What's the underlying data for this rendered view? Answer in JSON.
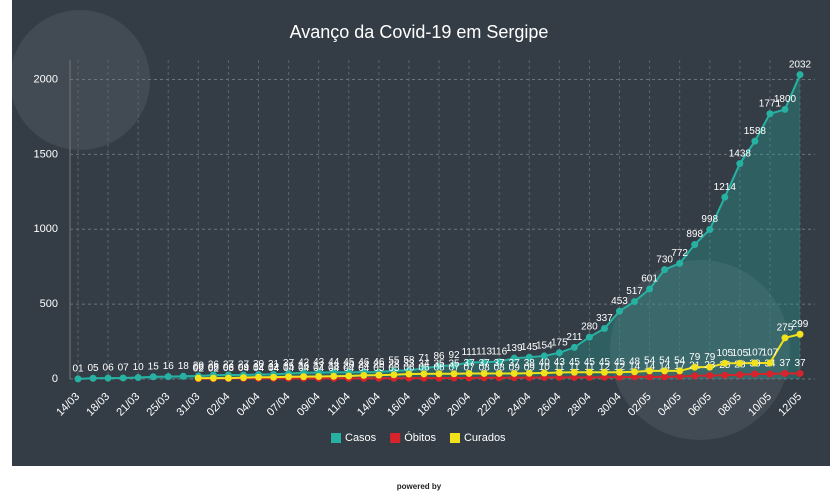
{
  "chart_data": {
    "type": "line",
    "title": "Avanço da Covid-19 em Sergipe",
    "footer": "powered by",
    "categories": [
      "14/03",
      null,
      "18/03",
      null,
      "21/03",
      null,
      "25/03",
      null,
      "31/03",
      null,
      "02/04",
      null,
      "04/04",
      null,
      "07/04",
      null,
      "09/04",
      null,
      "11/04",
      null,
      "14/04",
      null,
      "16/04",
      null,
      "18/04",
      null,
      "20/04",
      null,
      "22/04",
      null,
      "24/04",
      null,
      "26/04",
      null,
      "28/04",
      null,
      "30/04",
      null,
      "02/05",
      null,
      "04/05",
      null,
      "06/05",
      null,
      "08/05",
      null,
      "10/05",
      null,
      "12/05"
    ],
    "series": [
      {
        "name": "Casos",
        "color": "#27b1a2",
        "area": true,
        "values": [
          1,
          5,
          6,
          7,
          10,
          15,
          16,
          18,
          20,
          26,
          27,
          27,
          30,
          31,
          37,
          42,
          43,
          44,
          45,
          46,
          46,
          55,
          58,
          71,
          86,
          92,
          111,
          113,
          116,
          139,
          145,
          154,
          175,
          211,
          280,
          337,
          453,
          517,
          601,
          730,
          772,
          898,
          998,
          1214,
          1438,
          1588,
          1771,
          1800,
          2032
        ],
        "value_labels": [
          "01",
          "05",
          "06",
          "07",
          "10",
          "15",
          "16",
          "18",
          "20",
          "26",
          "27",
          "27",
          "30",
          "31",
          "37",
          "42",
          "43",
          "44",
          "45",
          "46",
          "46",
          "55",
          "58",
          "71",
          "86",
          "92",
          "111",
          "113",
          "116",
          "139",
          "145",
          "154",
          "175",
          "211",
          "280",
          "337",
          "453",
          "517",
          "601",
          "730",
          "772",
          "898",
          "998",
          "1214",
          "1438",
          "1588",
          "1771",
          "1800",
          "2032"
        ]
      },
      {
        "name": "Óbitos",
        "color": "#d8232a",
        "values": [
          null,
          null,
          null,
          null,
          null,
          null,
          null,
          null,
          2,
          2,
          3,
          4,
          4,
          4,
          4,
          4,
          4,
          4,
          4,
          4,
          5,
          5,
          6,
          6,
          6,
          7,
          7,
          8,
          8,
          9,
          9,
          10,
          11,
          11,
          11,
          12,
          12,
          14,
          14,
          14,
          17,
          21,
          23,
          25,
          28,
          33,
          34,
          37,
          37
        ],
        "value_labels": [
          null,
          null,
          null,
          null,
          null,
          null,
          null,
          null,
          "02",
          "02",
          "03",
          "04",
          "04",
          "04",
          "04",
          "04",
          "04",
          "04",
          "04",
          "04",
          "05",
          "05",
          "06",
          "06",
          "06",
          "07",
          "07",
          "08",
          "08",
          "09",
          "09",
          "10",
          "11",
          "11",
          "11",
          "12",
          "12",
          "14",
          "14",
          "14",
          "17",
          "21",
          "23",
          "25",
          "28",
          "33",
          "34",
          "37",
          "37"
        ]
      },
      {
        "name": "Curados",
        "color": "#f2e21c",
        "values": [
          null,
          null,
          null,
          null,
          null,
          null,
          null,
          null,
          6,
          6,
          6,
          9,
          12,
          12,
          15,
          16,
          17,
          18,
          20,
          24,
          26,
          28,
          33,
          34,
          35,
          35,
          37,
          37,
          37,
          37,
          38,
          40,
          43,
          45,
          45,
          45,
          45,
          48,
          54,
          54,
          54,
          79,
          79,
          105,
          105,
          107,
          107,
          275,
          299
        ],
        "value_labels": [
          null,
          null,
          null,
          null,
          null,
          null,
          null,
          null,
          "06",
          "06",
          "06",
          "09",
          "12",
          "12",
          "15",
          "16",
          "17",
          "18",
          "20",
          "24",
          "26",
          "28",
          "33",
          "34",
          "35",
          "35",
          "37",
          "37",
          "37",
          "37",
          "38",
          "40",
          "43",
          "45",
          "45",
          "45",
          "45",
          "48",
          "54",
          "54",
          "54",
          "79",
          "79",
          "105",
          "105",
          "107",
          "107",
          "275",
          "299"
        ]
      }
    ],
    "ylim": [
      0,
      2130
    ],
    "yticks": [
      0,
      500,
      1000,
      1500,
      2000
    ],
    "grid": true,
    "legend": "bottom"
  }
}
